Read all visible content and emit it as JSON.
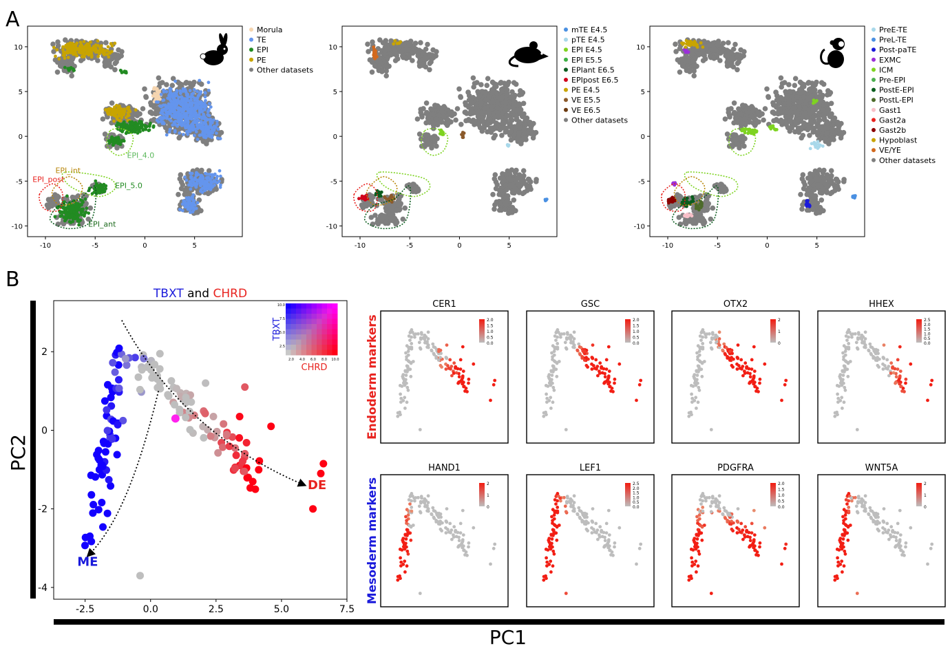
{
  "panel_letters": {
    "a": "A",
    "b": "B"
  },
  "chart_data": [
    {
      "type": "scatter",
      "id": "umap-rabbit",
      "species_icon": "rabbit-icon",
      "xticks": [
        -10,
        -5,
        0,
        5
      ],
      "yticks": [
        10,
        5,
        0,
        -5,
        -10
      ],
      "xlim": [
        -11.8,
        9.8
      ],
      "ylim": [
        -11.2,
        12.3
      ],
      "legend_position": "right",
      "legend": [
        {
          "name": "Morula",
          "color": "#f5d5b0"
        },
        {
          "name": "TE",
          "color": "#6495ed"
        },
        {
          "name": "EPI",
          "color": "#228b22"
        },
        {
          "name": "PE",
          "color": "#c8a400"
        },
        {
          "name": "Other datasets",
          "color": "#7f7f7f"
        }
      ],
      "annotations": [
        {
          "text": "EPI_4.0",
          "x": -1.8,
          "y": -2.4,
          "color": "#5cb85c"
        },
        {
          "text": "EPI_int",
          "x": -9.0,
          "y": -4.1,
          "color": "#b8860b"
        },
        {
          "text": "EPI_post",
          "x": -11.3,
          "y": -5.1,
          "color": "#e8231f"
        },
        {
          "text": "EPI_5.0",
          "x": -3.0,
          "y": -5.8,
          "color": "#228b22"
        },
        {
          "text": "EPI_ant",
          "x": -5.7,
          "y": -10.1,
          "color": "#1e6b1e"
        }
      ]
    },
    {
      "type": "scatter",
      "id": "umap-mouse",
      "species_icon": "mouse-icon",
      "xticks": [
        -10,
        -5,
        0,
        5
      ],
      "yticks": [
        10,
        5,
        0,
        -5,
        -10
      ],
      "xlim": [
        -11.8,
        9.8
      ],
      "ylim": [
        -11.2,
        12.3
      ],
      "legend_position": "right",
      "legend": [
        {
          "name": "mTE E4.5",
          "color": "#4a90e2"
        },
        {
          "name": "pTE E4.5",
          "color": "#a8d8ea"
        },
        {
          "name": "EPI E4.5",
          "color": "#7ed321"
        },
        {
          "name": "EPI E5.5",
          "color": "#3cb043"
        },
        {
          "name": "EPIant E6.5",
          "color": "#0b5d1e"
        },
        {
          "name": "EPIpost E6.5",
          "color": "#d0021b"
        },
        {
          "name": "PE E4.5",
          "color": "#c8a400"
        },
        {
          "name": "VE E5.5",
          "color": "#8b5a2b"
        },
        {
          "name": "VE E6.5",
          "color": "#6b3a10"
        },
        {
          "name": "Other datasets",
          "color": "#7f7f7f"
        }
      ]
    },
    {
      "type": "scatter",
      "id": "umap-monkey",
      "species_icon": "monkey-icon",
      "xticks": [
        -10,
        -5,
        0,
        5
      ],
      "yticks": [
        10,
        5,
        0,
        -5,
        -10
      ],
      "xlim": [
        -11.8,
        9.8
      ],
      "ylim": [
        -11.2,
        12.3
      ],
      "legend_position": "right",
      "legend": [
        {
          "name": "PreE-TE",
          "color": "#a8d8ea"
        },
        {
          "name": "PreL-TE",
          "color": "#4a90e2"
        },
        {
          "name": "Post-paTE",
          "color": "#1a1adb"
        },
        {
          "name": "EXMC",
          "color": "#9b30d9"
        },
        {
          "name": "ICM",
          "color": "#7ed321"
        },
        {
          "name": "Pre-EPI",
          "color": "#4caf50"
        },
        {
          "name": "PostE-EPI",
          "color": "#0b5d1e"
        },
        {
          "name": "PostL-EPI",
          "color": "#4d6b2a"
        },
        {
          "name": "Gast1",
          "color": "#f8c0c8"
        },
        {
          "name": "Gast2a",
          "color": "#e8231f"
        },
        {
          "name": "Gast2b",
          "color": "#8b0000"
        },
        {
          "name": "Hypoblast",
          "color": "#c8a400"
        },
        {
          "name": "VE/YE",
          "color": "#d2691e"
        },
        {
          "name": "Other datasets",
          "color": "#7f7f7f"
        }
      ]
    },
    {
      "type": "scatter",
      "id": "pca-tbxt-chrd",
      "title_parts": [
        {
          "text": "TBXT",
          "color": "#1a1adb"
        },
        {
          "text": " and ",
          "color": "#000000"
        },
        {
          "text": "CHRD",
          "color": "#e8231f"
        }
      ],
      "xlabel": "PC1",
      "ylabel": "PC2",
      "xticks": [
        -2.5,
        0.0,
        2.5,
        5.0,
        7.5
      ],
      "yticks": [
        2,
        0,
        -2,
        -4
      ],
      "xlim": [
        -3.7,
        7.5
      ],
      "ylim": [
        -4.3,
        3.3
      ],
      "colorbar": {
        "ylabel": "TBXT",
        "xlabel": "CHRD",
        "yticks": [
          "10.0",
          "7.5",
          "5.0",
          "2.5"
        ],
        "xticks": [
          "2.0",
          "4.0",
          "6.0",
          "8.0",
          "10.0"
        ]
      },
      "trajectory_labels": [
        {
          "text": "DE",
          "x": 6.0,
          "y": -1.5,
          "color": "#e8231f"
        },
        {
          "text": "ME",
          "x": -2.8,
          "y": -3.45,
          "color": "#1a1adb"
        }
      ]
    }
  ],
  "marker_groups": [
    {
      "label": "Endoderm markers",
      "color": "#e8231f",
      "genes": [
        {
          "name": "CER1",
          "cbar_ticks": [
            "2.0",
            "1.5",
            "1.0",
            "0.5",
            "0.0"
          ]
        },
        {
          "name": "GSC",
          "cbar_ticks": [
            "2.0",
            "1.5",
            "1.0",
            "0.5",
            "0.0"
          ]
        },
        {
          "name": "OTX2",
          "cbar_ticks": [
            "2",
            "1",
            "0"
          ]
        },
        {
          "name": "HHEX",
          "cbar_ticks": [
            "2.5",
            "2.0",
            "1.5",
            "1.0",
            "0.5",
            "0.0"
          ]
        }
      ]
    },
    {
      "label": "Mesoderm markers",
      "color": "#1a1adb",
      "genes": [
        {
          "name": "HAND1",
          "cbar_ticks": [
            "2",
            "1",
            "0"
          ]
        },
        {
          "name": "LEF1",
          "cbar_ticks": [
            "2.5",
            "2.0",
            "1.5",
            "1.0",
            "0.5",
            "0.0"
          ]
        },
        {
          "name": "PDGFRA",
          "cbar_ticks": [
            "2.0",
            "1.5",
            "1.0",
            "0.5",
            "0.0"
          ]
        },
        {
          "name": "WNT5A",
          "cbar_ticks": [
            "2",
            "1",
            "0"
          ]
        }
      ]
    }
  ]
}
